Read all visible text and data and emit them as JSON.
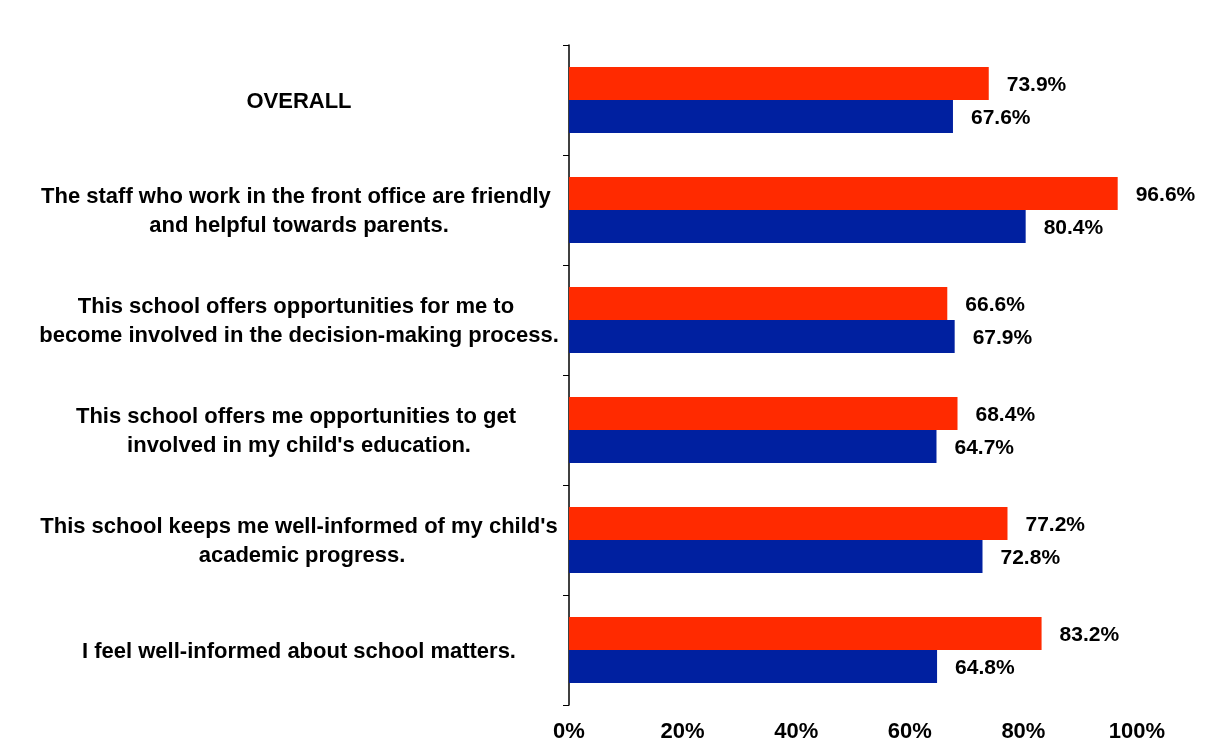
{
  "chart_data": {
    "type": "bar",
    "orientation": "horizontal",
    "categories": [
      "OVERALL",
      "The staff who work in the front office are friendly and helpful towards parents.",
      "This school offers opportunities for me to become involved in the decision-making process.",
      "This school offers me opportunities to get involved in my child's education.",
      "This school keeps me well-informed of my child's academic progress.",
      "I feel well-informed about school matters."
    ],
    "series": [
      {
        "color": "#ff2a00",
        "values": [
          73.9,
          96.6,
          66.6,
          68.4,
          77.2,
          83.2
        ],
        "value_labels": [
          "73.9%",
          "96.6%",
          "66.6%",
          "68.4%",
          "77.2%",
          "83.2%"
        ]
      },
      {
        "color": "#0020a0",
        "values": [
          67.6,
          80.4,
          67.9,
          64.7,
          72.8,
          64.8
        ],
        "value_labels": [
          "67.6%",
          "80.4%",
          "67.9%",
          "64.7%",
          "72.8%",
          "64.8%"
        ]
      }
    ],
    "xlim": [
      0,
      100
    ],
    "xticks": [
      {
        "value": 0,
        "label": "0%"
      },
      {
        "value": 20,
        "label": "20%"
      },
      {
        "value": 40,
        "label": "40%"
      },
      {
        "value": 60,
        "label": "60%"
      },
      {
        "value": 80,
        "label": "80%"
      },
      {
        "value": 100,
        "label": "100%"
      }
    ],
    "grid": false
  }
}
